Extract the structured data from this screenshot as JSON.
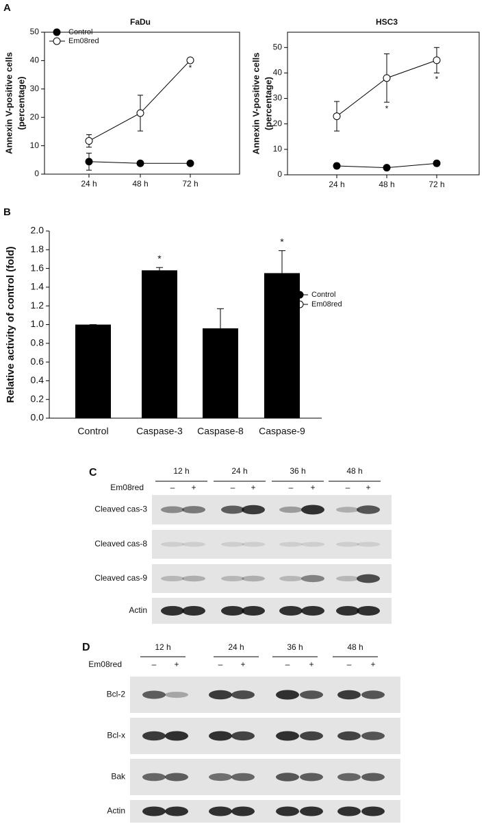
{
  "chart_data": [
    {
      "type": "line",
      "panel": "A",
      "title": "FaDu",
      "ylabel": [
        "Annexin V-positive cells",
        "(percentage)"
      ],
      "categories": [
        "24 h",
        "48 h",
        "72 h"
      ],
      "ylim": [
        0,
        50
      ],
      "yticks": [
        0,
        10,
        20,
        30,
        40,
        50
      ],
      "legend": "upper left",
      "series": [
        {
          "name": "Control",
          "color": "#000000",
          "values": [
            4.4,
            3.8,
            3.8
          ],
          "errors": [
            3,
            0.3,
            0.3
          ],
          "significance": [
            null,
            null,
            null
          ]
        },
        {
          "name": "Em08red",
          "color": "#ffffff",
          "values": [
            11.7,
            21.5,
            40.1
          ],
          "errors": [
            2.2,
            6.3,
            0.5
          ],
          "significance": [
            null,
            null,
            "*"
          ]
        }
      ]
    },
    {
      "type": "line",
      "title": "HSC3",
      "ylabel": [
        "Annexin V-positive cells",
        "(percentage)"
      ],
      "categories": [
        "24 h",
        "48 h",
        "72 h"
      ],
      "ylim": [
        0,
        56
      ],
      "yticks": [
        0,
        10,
        20,
        30,
        40,
        50
      ],
      "legend": "upper left",
      "series": [
        {
          "name": "Control",
          "color": "#000000",
          "values": [
            3.5,
            2.8,
            4.5
          ],
          "errors": [
            1,
            0.8,
            1
          ],
          "significance": [
            null,
            null,
            null
          ]
        },
        {
          "name": "Em08red",
          "color": "#ffffff",
          "values": [
            23,
            38,
            45
          ],
          "errors": [
            5.8,
            9.5,
            5
          ],
          "significance": [
            null,
            "*",
            "*"
          ]
        }
      ]
    },
    {
      "type": "bar",
      "panel": "B",
      "ylabel": "Relative activity of control (fold)",
      "categories": [
        "Control",
        "Caspase-3",
        "Caspase-8",
        "Caspase-9"
      ],
      "values": [
        1.0,
        1.58,
        0.96,
        1.55
      ],
      "errors": [
        0,
        0.03,
        0.21,
        0.24
      ],
      "significance": [
        null,
        "*",
        null,
        "*"
      ],
      "color": "#000000",
      "ylim": [
        0,
        2
      ],
      "yticks": [
        {
          "value": 0,
          "label": "0.0"
        },
        {
          "value": 0.2,
          "label": "0.2"
        },
        {
          "value": 0.4,
          "label": "0.4"
        },
        {
          "value": 0.6,
          "label": "0.6"
        },
        {
          "value": 0.8,
          "label": "0.8"
        },
        {
          "value": 1,
          "label": "1.0"
        },
        {
          "value": 1.2,
          "label": "1.2"
        },
        {
          "value": 1.4,
          "label": "1.4"
        },
        {
          "value": 1.6,
          "label": "1.6"
        },
        {
          "value": 1.8,
          "label": "1.8"
        },
        {
          "value": 2,
          "label": "2.0"
        }
      ]
    }
  ],
  "blots": [
    {
      "panel": "C",
      "times": [
        "12 h",
        "24 h",
        "36 h",
        "48 h"
      ],
      "treatment": "Em08red",
      "signs": [
        "–",
        "+"
      ],
      "rows": [
        "Cleaved cas-3",
        "Cleaved cas-8",
        "Cleaved cas-9",
        "Actin"
      ]
    },
    {
      "panel": "D",
      "times": [
        "12 h",
        "24 h",
        "36 h",
        "48 h"
      ],
      "treatment": "Em08red",
      "signs": [
        "–",
        "+"
      ],
      "rows": [
        "Bcl-2",
        "Bcl-x",
        "Bak",
        "Actin"
      ]
    }
  ]
}
